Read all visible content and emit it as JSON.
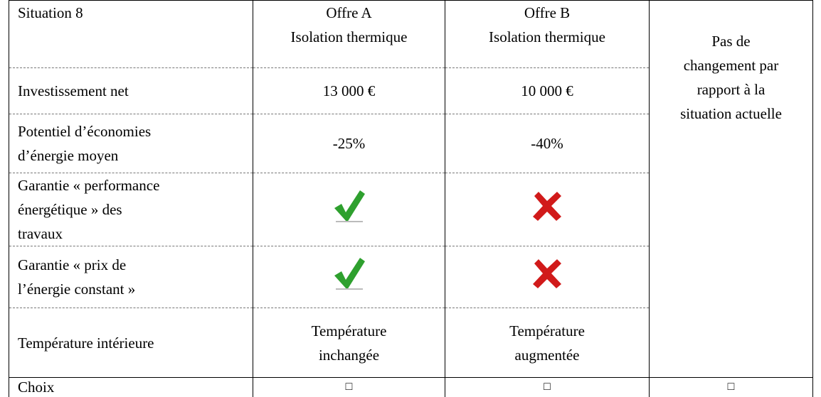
{
  "table": {
    "header": [
      "Situation 8",
      "Offre A\nIsolation thermique",
      "Offre B\nIsolation thermique"
    ],
    "rows": [
      {
        "label": "Investissement net",
        "a": "13 000 €",
        "b": "10 000 €"
      },
      {
        "label": "Potentiel d’économies\nd’énergie moyen",
        "a": "-25%",
        "b": "-40%"
      },
      {
        "label": "Garantie « performance\nénergétique » des\ntravaux"
      },
      {
        "label": "Garantie « prix de\nl’énergie constant »"
      },
      {
        "label": "Température intérieure",
        "a": "Température\ninchangée",
        "b": "Température\naugmentée"
      }
    ],
    "status_quo": "Pas de\nchangement par\nrapport à la\nsituation actuelle",
    "choice": {
      "label": "Choix",
      "boxes": [
        "□",
        "□",
        "□"
      ]
    }
  }
}
